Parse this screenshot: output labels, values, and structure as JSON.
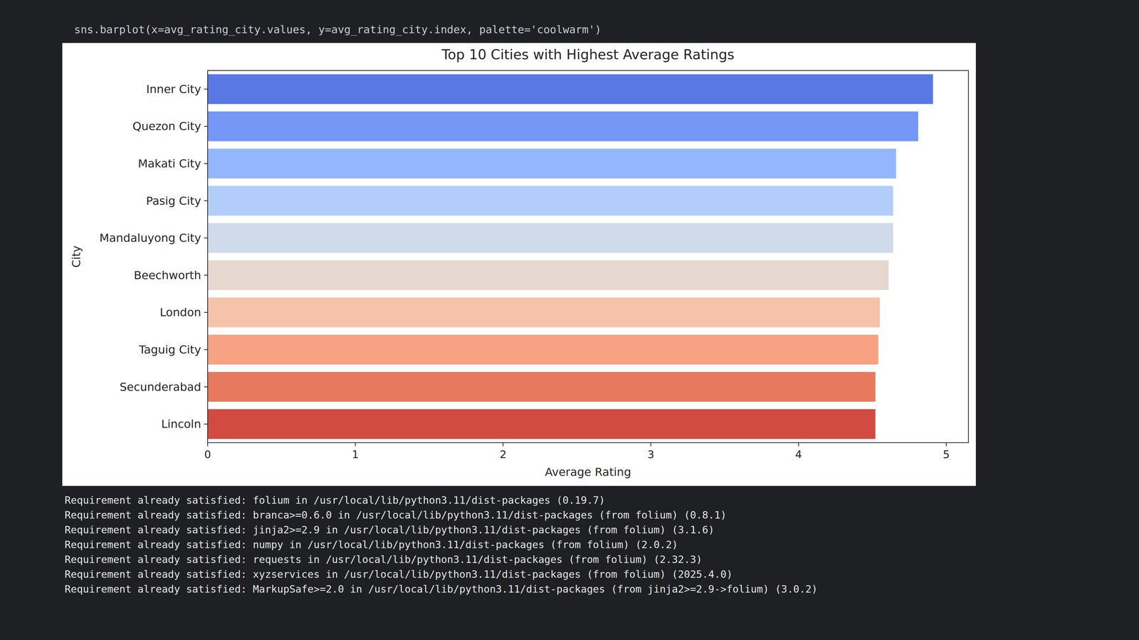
{
  "chart_data": {
    "type": "bar",
    "orientation": "horizontal",
    "title": "Top 10 Cities with Highest Average Ratings",
    "xlabel": "Average Rating",
    "ylabel": "City",
    "categories": [
      "Inner City",
      "Quezon City",
      "Makati City",
      "Pasig City",
      "Mandaluyong City",
      "Beechworth",
      "London",
      "Taguig City",
      "Secunderabad",
      "Lincoln"
    ],
    "values": [
      4.91,
      4.81,
      4.66,
      4.64,
      4.64,
      4.61,
      4.55,
      4.54,
      4.52,
      4.52
    ],
    "colors": [
      "#5a78e4",
      "#7597f6",
      "#94b6ff",
      "#b3cdfb",
      "#cfdaea",
      "#e6d7cf",
      "#f5c2aa",
      "#f6a283",
      "#e7795e",
      "#d24b40"
    ],
    "xlim": [
      0,
      5.15
    ],
    "xticks": [
      0,
      1,
      2,
      3,
      4,
      5
    ],
    "grid": false
  },
  "code": {
    "line": "sns.barplot(x=avg_rating_city.values, y=avg_rating_city.index, palette='coolwarm')"
  },
  "console": {
    "lines": [
      "Requirement already satisfied: folium in /usr/local/lib/python3.11/dist-packages (0.19.7)",
      "Requirement already satisfied: branca>=0.6.0 in /usr/local/lib/python3.11/dist-packages (from folium) (0.8.1)",
      "Requirement already satisfied: jinja2>=2.9 in /usr/local/lib/python3.11/dist-packages (from folium) (3.1.6)",
      "Requirement already satisfied: numpy in /usr/local/lib/python3.11/dist-packages (from folium) (2.0.2)",
      "Requirement already satisfied: requests in /usr/local/lib/python3.11/dist-packages (from folium) (2.32.3)",
      "Requirement already satisfied: xyzservices in /usr/local/lib/python3.11/dist-packages (from folium) (2025.4.0)",
      "Requirement already satisfied: MarkupSafe>=2.0 in /usr/local/lib/python3.11/dist-packages (from jinja2>=2.9->folium) (3.0.2)"
    ]
  }
}
